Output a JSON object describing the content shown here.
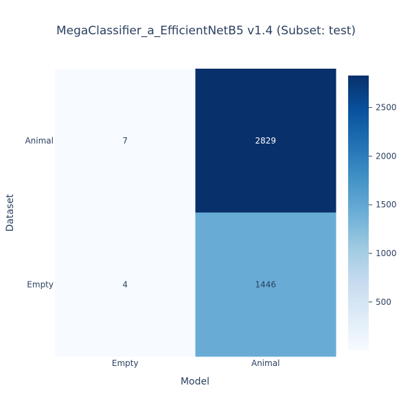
{
  "chart_data": {
    "type": "heatmap",
    "title": "MegaClassifier_a_EfficientNetB5 v1.4 (Subset: test)",
    "xlabel": "Model",
    "ylabel": "Dataset",
    "x_categories": [
      "Empty",
      "Animal"
    ],
    "y_categories": [
      "Animal",
      "Empty"
    ],
    "values": [
      [
        7,
        2829
      ],
      [
        4,
        1446
      ]
    ],
    "colorscale": "Blues",
    "zlim": [
      4,
      2829
    ],
    "colorbar_ticks": [
      500,
      1000,
      1500,
      2000,
      2500
    ],
    "colors": {
      "low": "#f7fbff",
      "high": "#08306b",
      "text_dark": "#2a3f5f",
      "text_light": "#ffffff"
    }
  }
}
